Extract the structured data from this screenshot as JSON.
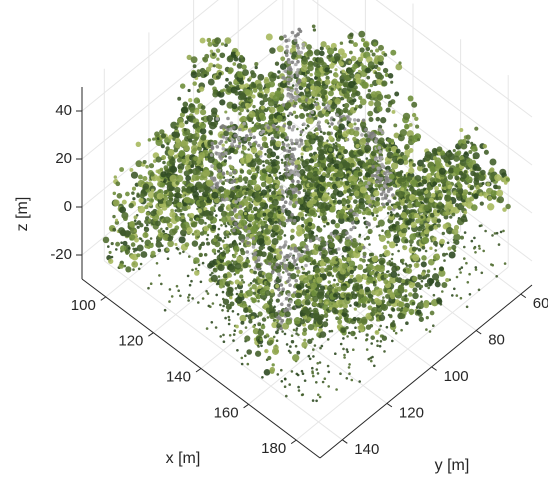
{
  "chart_data": {
    "type": "scatter",
    "subtype": "3d-point-cloud",
    "title": "",
    "xlabel": "x [m]",
    "ylabel": "y [m]",
    "zlabel": "z [m]",
    "xlim": [
      90,
      190
    ],
    "ylim": [
      55,
      150
    ],
    "zlim": [
      -30,
      50
    ],
    "x_ticks": [
      "100",
      "120",
      "140",
      "160",
      "180"
    ],
    "y_ticks": [
      "60",
      "80",
      "100",
      "120",
      "140"
    ],
    "z_ticks": [
      "-20",
      "0",
      "20",
      "40"
    ],
    "grid": true,
    "legend": "none",
    "colors": {
      "foliage_dark": "#3f5a2a",
      "foliage_mid": "#6f8f3c",
      "foliage_light": "#a7b95e",
      "trunk_gray": "#9a9a9a",
      "axis": "#262626",
      "grid": "#e6e6e6"
    }
  }
}
